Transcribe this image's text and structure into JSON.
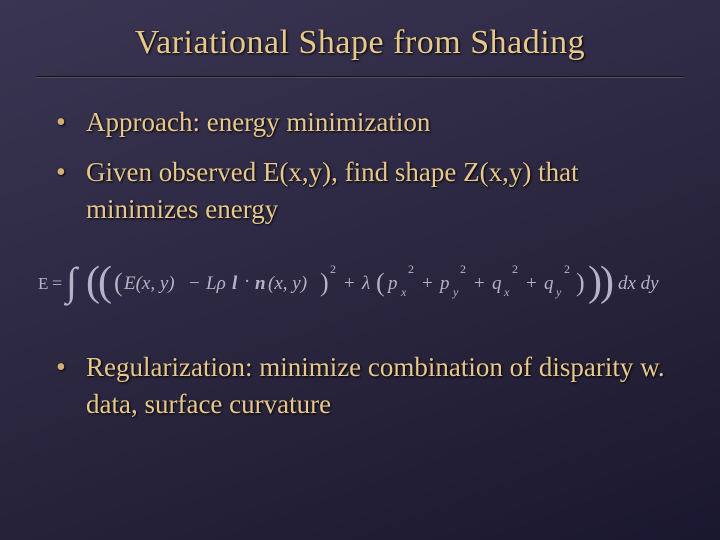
{
  "colors": {
    "bg_start": "#3a3552",
    "bg_end": "#1a1730",
    "text": "#e8c88a",
    "eq": "#b8b2c8",
    "rule_dark": "#111111",
    "rule_light": "#555063"
  },
  "typography": {
    "title_family": "Garamond, Georgia, serif",
    "title_fontsize": 34,
    "body_fontsize": 27,
    "eq_fontsize": 18
  },
  "title": "Variational Shape from Shading",
  "bullets": {
    "b1": "Approach: energy minimization",
    "b2": "Given observed E(x,y), find shape Z(x,y) that minimizes energy",
    "b3": "Regularization: minimize combination of disparity w. data, surface curvature"
  },
  "equation": {
    "lhs": "E",
    "int": "∫",
    "term1a": "E(x, y)",
    "minus": "−",
    "term1b": "Lρ",
    "lvec": "l",
    "dot": "·",
    "nvec": "n",
    "args": "(x, y)",
    "sq": "2",
    "plus": "+",
    "lambda": "λ",
    "px": "p",
    "xsub": "x",
    "py": "p",
    "ysub": "y",
    "qx": "q",
    "qy": "q",
    "dxy": "dx dy"
  }
}
